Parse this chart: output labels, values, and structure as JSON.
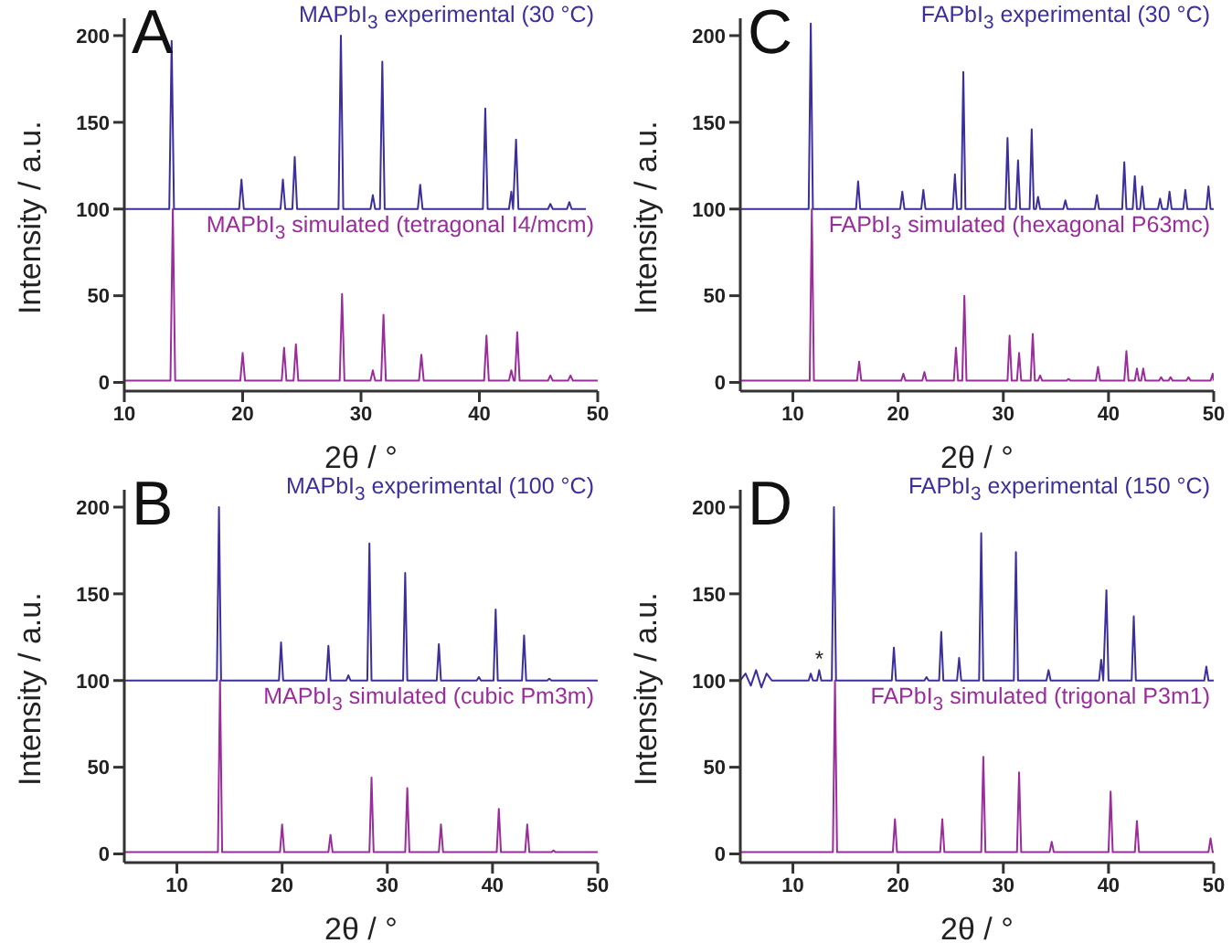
{
  "chart_data": [
    {
      "type": "line",
      "title": "A",
      "xlabel": "2θ / °",
      "ylabel": "Intensity / a.u.",
      "xlim": [
        10,
        50
      ],
      "xticks": [
        10,
        20,
        30,
        40,
        50
      ],
      "ylim": [
        -5,
        210
      ],
      "yticks": [
        0,
        50,
        100,
        150,
        200
      ],
      "grid": false,
      "marker": "none",
      "line_style": "solid",
      "series": [
        {
          "name": "MAPbI$_{3}$ experimental (30 °C)",
          "color": "#3a2f9c",
          "x": [
            10,
            13.8,
            14.0,
            14.2,
            19.7,
            19.9,
            20.1,
            23.2,
            23.4,
            23.6,
            24.2,
            24.4,
            24.6,
            28.1,
            28.3,
            28.5,
            30.8,
            31.0,
            31.2,
            31.6,
            31.8,
            32.0,
            34.8,
            35.0,
            35.2,
            40.3,
            40.5,
            40.7,
            42.5,
            42.7,
            42.85,
            43.1,
            43.3,
            45.8,
            46.0,
            46.2,
            47.4,
            47.6,
            47.8,
            49
          ],
          "values": [
            100,
            100,
            197,
            100,
            100,
            117,
            100,
            100,
            117,
            100,
            100,
            130,
            100,
            100,
            200,
            100,
            100,
            108,
            100,
            100,
            185,
            100,
            100,
            114,
            100,
            100,
            158,
            100,
            100,
            110,
            100,
            140,
            100,
            100,
            103,
            100,
            100,
            104,
            100,
            100
          ]
        },
        {
          "name": "MAPbI$_{3}$ simulated (tetragonal I4/mcm)",
          "color": "#9a2c9c",
          "x": [
            10,
            13.9,
            14.1,
            14.3,
            19.8,
            20.0,
            20.2,
            23.3,
            23.5,
            23.7,
            24.3,
            24.5,
            24.7,
            28.2,
            28.4,
            28.6,
            30.8,
            31.0,
            31.2,
            31.7,
            31.9,
            32.1,
            34.9,
            35.1,
            35.3,
            40.4,
            40.6,
            40.8,
            42.5,
            42.7,
            42.9,
            43.0,
            43.2,
            43.4,
            45.8,
            46.0,
            46.2,
            47.5,
            47.7,
            47.9,
            50
          ],
          "values": [
            1,
            1,
            100,
            1,
            1,
            17,
            1,
            1,
            20,
            1,
            1,
            22,
            1,
            1,
            51,
            1,
            1,
            7,
            1,
            1,
            39,
            1,
            1,
            16,
            1,
            1,
            27,
            1,
            1,
            7,
            1,
            1,
            29,
            1,
            1,
            4,
            1,
            1,
            4,
            1,
            1
          ]
        }
      ]
    },
    {
      "type": "line",
      "title": "C",
      "xlabel": "2θ / °",
      "ylabel": "Intensity / a.u.",
      "xlim": [
        5,
        50
      ],
      "xticks": [
        10,
        20,
        30,
        40,
        50
      ],
      "ylim": [
        -5,
        210
      ],
      "yticks": [
        0,
        50,
        100,
        150,
        200
      ],
      "grid": false,
      "marker": "none",
      "line_style": "solid",
      "series": [
        {
          "name": "FAPbI$_{3}$ experimental (30 °C)",
          "color": "#3a2f9c",
          "x": [
            5,
            11.5,
            11.7,
            11.9,
            16.0,
            16.2,
            16.4,
            20.2,
            20.4,
            20.6,
            22.2,
            22.4,
            22.6,
            25.2,
            25.4,
            25.6,
            26.0,
            26.2,
            26.4,
            30.2,
            30.4,
            30.6,
            31.2,
            31.4,
            31.6,
            32.5,
            32.7,
            32.9,
            33.1,
            33.3,
            33.5,
            35.7,
            35.9,
            36.1,
            38.7,
            38.9,
            39.1,
            41.3,
            41.5,
            41.7,
            42.3,
            42.5,
            42.7,
            43.0,
            43.2,
            43.4,
            44.7,
            44.9,
            45.1,
            45.6,
            45.8,
            46.0,
            47.1,
            47.3,
            47.5,
            49.3,
            49.5,
            49.7,
            50
          ],
          "values": [
            100,
            100,
            207,
            100,
            100,
            116,
            100,
            100,
            110,
            100,
            100,
            111,
            100,
            100,
            120,
            100,
            100,
            179,
            100,
            100,
            141,
            100,
            100,
            128,
            100,
            100,
            146,
            100,
            100,
            107,
            100,
            100,
            105,
            100,
            100,
            108,
            100,
            100,
            127,
            100,
            100,
            119,
            100,
            100,
            113,
            100,
            100,
            106,
            100,
            100,
            110,
            100,
            100,
            111,
            100,
            100,
            113,
            100,
            100
          ]
        },
        {
          "name": "FAPbI$_{3}$ simulated (hexagonal P63mc)",
          "color": "#9a2c9c",
          "x": [
            5,
            11.6,
            11.8,
            12.0,
            16.1,
            16.3,
            16.5,
            20.3,
            20.5,
            20.7,
            22.3,
            22.5,
            22.7,
            25.3,
            25.5,
            25.7,
            26.1,
            26.3,
            26.5,
            30.4,
            30.6,
            30.8,
            31.3,
            31.5,
            31.7,
            32.6,
            32.8,
            33.0,
            33.3,
            33.5,
            33.7,
            36.0,
            36.2,
            36.4,
            38.8,
            39.0,
            39.2,
            41.5,
            41.7,
            41.9,
            42.5,
            42.7,
            42.9,
            43.1,
            43.3,
            43.5,
            44.8,
            45.0,
            45.2,
            45.7,
            45.9,
            46.1,
            47.4,
            47.6,
            47.8,
            49.7,
            49.9,
            50
          ],
          "values": [
            1,
            1,
            100,
            1,
            1,
            12,
            1,
            1,
            5,
            1,
            1,
            6,
            1,
            1,
            20,
            1,
            1,
            50,
            1,
            1,
            27,
            1,
            1,
            17,
            1,
            1,
            28,
            1,
            1,
            4,
            1,
            1,
            2,
            1,
            1,
            9,
            1,
            1,
            18,
            1,
            1,
            8,
            1,
            1,
            8,
            1,
            1,
            3,
            1,
            1,
            3,
            1,
            1,
            3,
            1,
            1,
            5,
            1
          ]
        }
      ]
    },
    {
      "type": "line",
      "title": "B",
      "xlabel": "2θ / °",
      "ylabel": "Intensity / a.u.",
      "xlim": [
        5,
        50
      ],
      "xticks": [
        10,
        20,
        30,
        40,
        50
      ],
      "ylim": [
        -5,
        210
      ],
      "yticks": [
        0,
        50,
        100,
        150,
        200
      ],
      "grid": false,
      "marker": "none",
      "line_style": "solid",
      "series": [
        {
          "name": "MAPbI$_{3}$ experimental (100 °C)",
          "color": "#3a2f9c",
          "x": [
            5,
            13.8,
            14.0,
            14.2,
            19.7,
            19.9,
            20.1,
            24.2,
            24.4,
            24.6,
            26.1,
            26.3,
            26.5,
            28.1,
            28.3,
            28.5,
            31.5,
            31.7,
            31.9,
            34.7,
            34.9,
            35.1,
            38.5,
            38.7,
            38.9,
            40.1,
            40.3,
            40.5,
            42.8,
            43.0,
            43.2,
            45.2,
            45.4,
            45.6,
            50
          ],
          "values": [
            100,
            100,
            200,
            100,
            100,
            122,
            100,
            100,
            120,
            100,
            100,
            103,
            100,
            100,
            179,
            100,
            100,
            162,
            100,
            100,
            121,
            100,
            100,
            102,
            100,
            100,
            141,
            100,
            100,
            126,
            100,
            100,
            101,
            100,
            100
          ]
        },
        {
          "name": "MAPbI$_{3}$ simulated (cubic Pm3m)",
          "color": "#9a2c9c",
          "x": [
            5,
            13.9,
            14.1,
            14.3,
            19.8,
            20.0,
            20.2,
            24.4,
            24.6,
            24.8,
            28.3,
            28.5,
            28.7,
            31.7,
            31.9,
            32.1,
            34.9,
            35.1,
            35.3,
            40.4,
            40.6,
            40.8,
            43.1,
            43.3,
            43.5,
            45.6,
            45.8,
            46.0,
            50
          ],
          "values": [
            1,
            1,
            100,
            1,
            1,
            17,
            1,
            1,
            11,
            1,
            1,
            44,
            1,
            1,
            38,
            1,
            1,
            17,
            1,
            1,
            26,
            1,
            1,
            17,
            1,
            1,
            2,
            1,
            1
          ]
        }
      ]
    },
    {
      "type": "line",
      "title": "D",
      "xlabel": "2θ / °",
      "ylabel": "Intensity / a.u.",
      "xlim": [
        5,
        50
      ],
      "xticks": [
        10,
        20,
        30,
        40,
        50
      ],
      "ylim": [
        -5,
        210
      ],
      "yticks": [
        0,
        50,
        100,
        150,
        200
      ],
      "grid": false,
      "marker": "none",
      "line_style": "solid",
      "annotations": [
        {
          "text": "*",
          "x": 12.5,
          "y": 106
        }
      ],
      "series": [
        {
          "name": "FAPbI$_{3}$ experimental (150 °C)",
          "color": "#3a2f9c",
          "x": [
            5,
            5.5,
            6.0,
            6.5,
            7.0,
            7.5,
            8.0,
            11.5,
            11.7,
            11.9,
            12.3,
            12.5,
            12.7,
            13.7,
            13.9,
            14.1,
            19.4,
            19.6,
            19.8,
            22.5,
            22.7,
            22.9,
            23.9,
            24.1,
            24.3,
            25.6,
            25.8,
            26.0,
            27.7,
            27.9,
            28.1,
            31.0,
            31.2,
            31.4,
            34.1,
            34.3,
            34.5,
            39.1,
            39.3,
            39.5,
            39.8,
            40.0,
            42.2,
            42.4,
            42.6,
            49.1,
            49.3,
            49.5,
            50
          ],
          "values": [
            100,
            104,
            97,
            106,
            96,
            104,
            100,
            100,
            104,
            100,
            100,
            106,
            100,
            100,
            200,
            100,
            100,
            119,
            100,
            100,
            102,
            100,
            100,
            128,
            100,
            100,
            113,
            100,
            100,
            185,
            100,
            100,
            174,
            100,
            100,
            106,
            100,
            100,
            112,
            100,
            152,
            100,
            100,
            137,
            100,
            100,
            108,
            100,
            100
          ]
        },
        {
          "name": "FAPbI$_{3}$ simulated (trigonal P3m1)",
          "color": "#9a2c9c",
          "x": [
            5,
            13.8,
            14.0,
            14.2,
            19.5,
            19.7,
            19.9,
            24.0,
            24.2,
            24.4,
            27.9,
            28.1,
            28.3,
            31.3,
            31.5,
            31.7,
            34.4,
            34.6,
            34.8,
            40.0,
            40.2,
            40.4,
            42.5,
            42.7,
            42.9,
            49.5,
            49.7,
            49.9,
            50
          ],
          "values": [
            1,
            1,
            100,
            1,
            1,
            20,
            1,
            1,
            20,
            1,
            1,
            56,
            1,
            1,
            47,
            1,
            1,
            7,
            1,
            1,
            36,
            1,
            1,
            19,
            1,
            1,
            9,
            1,
            1
          ]
        }
      ]
    }
  ]
}
